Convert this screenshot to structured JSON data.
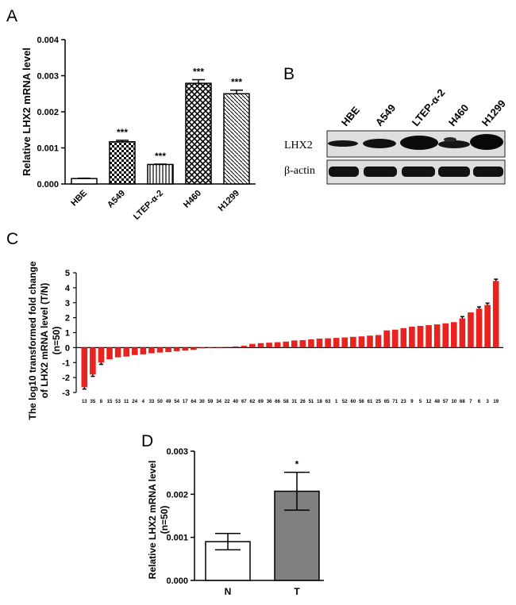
{
  "panels": {
    "a": "A",
    "b": "B",
    "c": "C",
    "d": "D"
  },
  "blot": {
    "columns": [
      "HBE",
      "A549",
      "LTEP-α-2",
      "H460",
      "H1299"
    ],
    "rows": [
      "LHX2",
      "β-actin"
    ]
  },
  "chart_data": [
    {
      "type": "bar",
      "panel": "A",
      "ylabel": "Relative LHX2 mRNA level",
      "categories": [
        "HBE",
        "A549",
        "LTEP-α-2",
        "H460",
        "H1299"
      ],
      "values": [
        0.00015,
        0.00117,
        0.00054,
        0.00279,
        0.0025
      ],
      "errors": [
        1e-05,
        4e-05,
        1e-05,
        0.0001,
        0.0001
      ],
      "significance": [
        "",
        "***",
        "***",
        "***",
        "***"
      ],
      "patterns": [
        "white",
        "checker",
        "vertical-lines",
        "crosshatch",
        "diagonal-lines"
      ],
      "ylim": [
        0,
        0.004
      ],
      "yticks": [
        "0.000",
        "0.001",
        "0.002",
        "0.003",
        "0.004"
      ]
    },
    {
      "type": "bar",
      "panel": "C",
      "ylabel_lines": [
        "The log10 transformed fold change",
        "of LHX2 mRNA level (T/N)",
        "(n=50)"
      ],
      "categories": [
        "13",
        "35",
        "8",
        "15",
        "53",
        "11",
        "24",
        "4",
        "33",
        "50",
        "49",
        "54",
        "17",
        "64",
        "30",
        "59",
        "34",
        "22",
        "40",
        "67",
        "62",
        "69",
        "36",
        "66",
        "58",
        "31",
        "26",
        "51",
        "18",
        "63",
        "1",
        "52",
        "60",
        "56",
        "61",
        "25",
        "65",
        "71",
        "23",
        "9",
        "5",
        "12",
        "48",
        "57",
        "10",
        "68",
        "7",
        "6",
        "3",
        "19"
      ],
      "values": [
        -2.65,
        -1.8,
        -1.0,
        -0.78,
        -0.65,
        -0.6,
        -0.5,
        -0.45,
        -0.38,
        -0.33,
        -0.3,
        -0.24,
        -0.2,
        -0.15,
        -0.05,
        -0.02,
        0.02,
        0.05,
        0.08,
        0.12,
        0.25,
        0.3,
        0.33,
        0.36,
        0.4,
        0.48,
        0.5,
        0.55,
        0.6,
        0.62,
        0.65,
        0.68,
        0.72,
        0.75,
        0.8,
        0.84,
        1.15,
        1.2,
        1.3,
        1.4,
        1.45,
        1.5,
        1.55,
        1.62,
        1.7,
        1.95,
        2.35,
        2.6,
        2.85,
        4.45
      ],
      "error_bar_indices": [
        0,
        1,
        2,
        45,
        47,
        48,
        49
      ],
      "bar_color": "#e8231f",
      "ylim": [
        -3,
        5
      ],
      "yticks": [
        "-3",
        "-2",
        "-1",
        "0",
        "1",
        "2",
        "3",
        "4",
        "5"
      ]
    },
    {
      "type": "bar",
      "panel": "D",
      "ylabel_lines": [
        "Relative LHX2 mRNA level",
        "(n=50)"
      ],
      "categories": [
        "N",
        "T"
      ],
      "values": [
        0.0009,
        0.00207
      ],
      "errors": [
        0.00019,
        0.00044
      ],
      "significance": [
        "",
        "*"
      ],
      "colors": [
        "#ffffff",
        "#808080"
      ],
      "ylim": [
        0,
        0.003
      ],
      "yticks": [
        "0.000",
        "0.001",
        "0.002",
        "0.003"
      ]
    }
  ]
}
